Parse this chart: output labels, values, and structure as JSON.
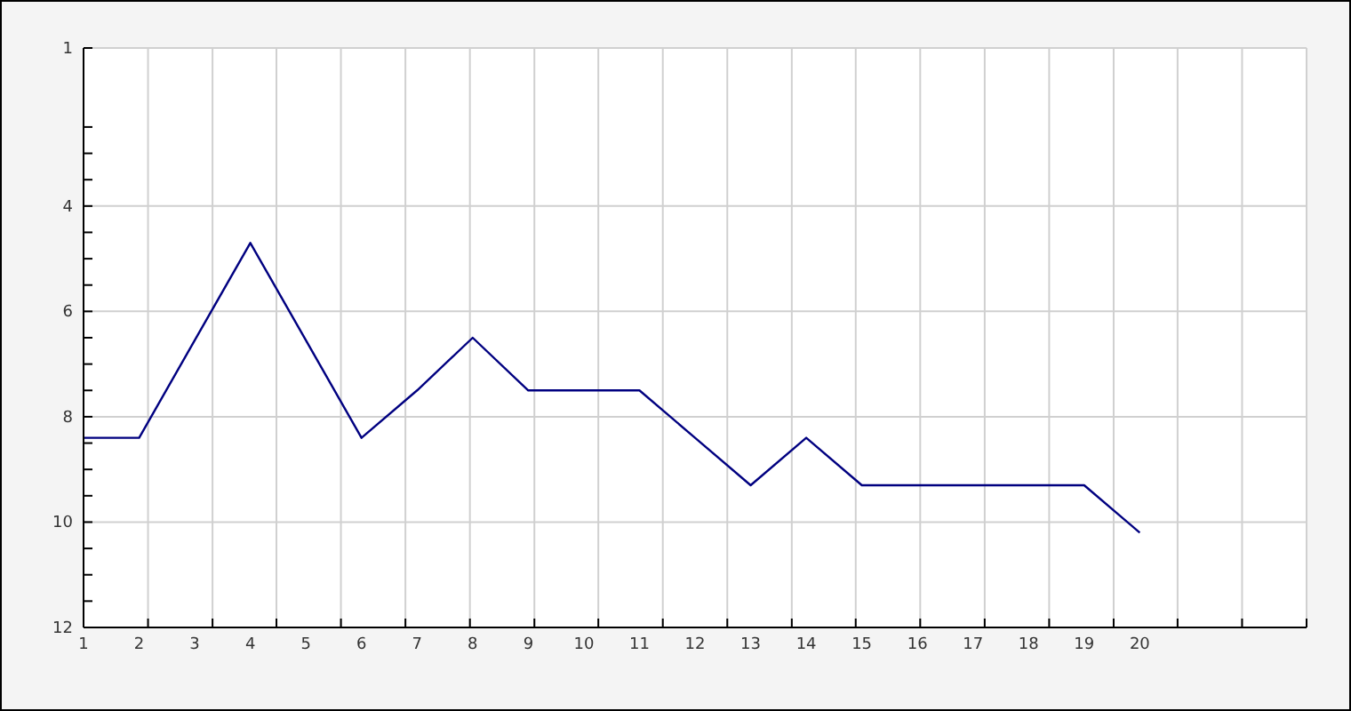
{
  "chart_data": {
    "type": "line",
    "x": [
      1,
      2,
      3,
      4,
      5,
      6,
      7,
      8,
      9,
      10,
      11,
      12,
      13,
      14,
      15,
      16,
      17,
      18,
      19,
      20
    ],
    "series": [
      {
        "color": "#000080",
        "values": [
          8.4,
          8.4,
          6.55,
          4.7,
          6.55,
          8.4,
          7.5,
          6.5,
          7.5,
          7.5,
          7.5,
          8.4,
          9.3,
          8.4,
          9.3,
          9.3,
          9.3,
          9.3,
          9.3,
          10.2
        ]
      }
    ],
    "xlim": [
      1,
      23
    ],
    "xticks": [
      1,
      2,
      3,
      4,
      5,
      6,
      7,
      8,
      9,
      10,
      11,
      12,
      13,
      14,
      15,
      16,
      17,
      18,
      19,
      20,
      {
        "value": 2.16,
        "label": null
      },
      {
        "value": 3.32,
        "label": null
      },
      {
        "value": 4.47,
        "label": null
      },
      {
        "value": 5.63,
        "label": null
      },
      {
        "value": 6.79,
        "label": null
      },
      {
        "value": 7.95,
        "label": null
      },
      {
        "value": 9.11,
        "label": null
      },
      {
        "value": 10.26,
        "label": null
      },
      {
        "value": 11.42,
        "label": null
      },
      {
        "value": 12.58,
        "label": null
      },
      {
        "value": 13.74,
        "label": null
      },
      {
        "value": 14.89,
        "label": null
      },
      {
        "value": 16.05,
        "label": null
      },
      {
        "value": 17.21,
        "label": null
      },
      {
        "value": 18.37,
        "label": null
      },
      {
        "value": 19.53,
        "label": null
      },
      {
        "value": 20.68,
        "label": null
      },
      {
        "value": 21.84,
        "label": null
      }
    ],
    "ylim": [
      12,
      1
    ],
    "yticks": [
      1,
      4,
      6,
      8,
      10,
      12,
      {
        "value": 2.5,
        "label": null
      },
      {
        "value": 3,
        "label": null
      },
      {
        "value": 3.5,
        "label": null
      },
      {
        "value": 4.5,
        "label": null
      },
      {
        "value": 5,
        "label": null
      },
      {
        "value": 5.5,
        "label": null
      },
      {
        "value": 6.5,
        "label": null
      },
      {
        "value": 7,
        "label": null
      },
      {
        "value": 7.5,
        "label": null
      },
      {
        "value": 8.5,
        "label": null
      },
      {
        "value": 9,
        "label": null
      },
      {
        "value": 9.5,
        "label": null
      },
      {
        "value": 10.5,
        "label": null
      },
      {
        "value": 11,
        "label": null
      },
      {
        "value": 11.5,
        "label": null
      }
    ],
    "grid": true,
    "marker": "none",
    "line_style": "solid"
  }
}
